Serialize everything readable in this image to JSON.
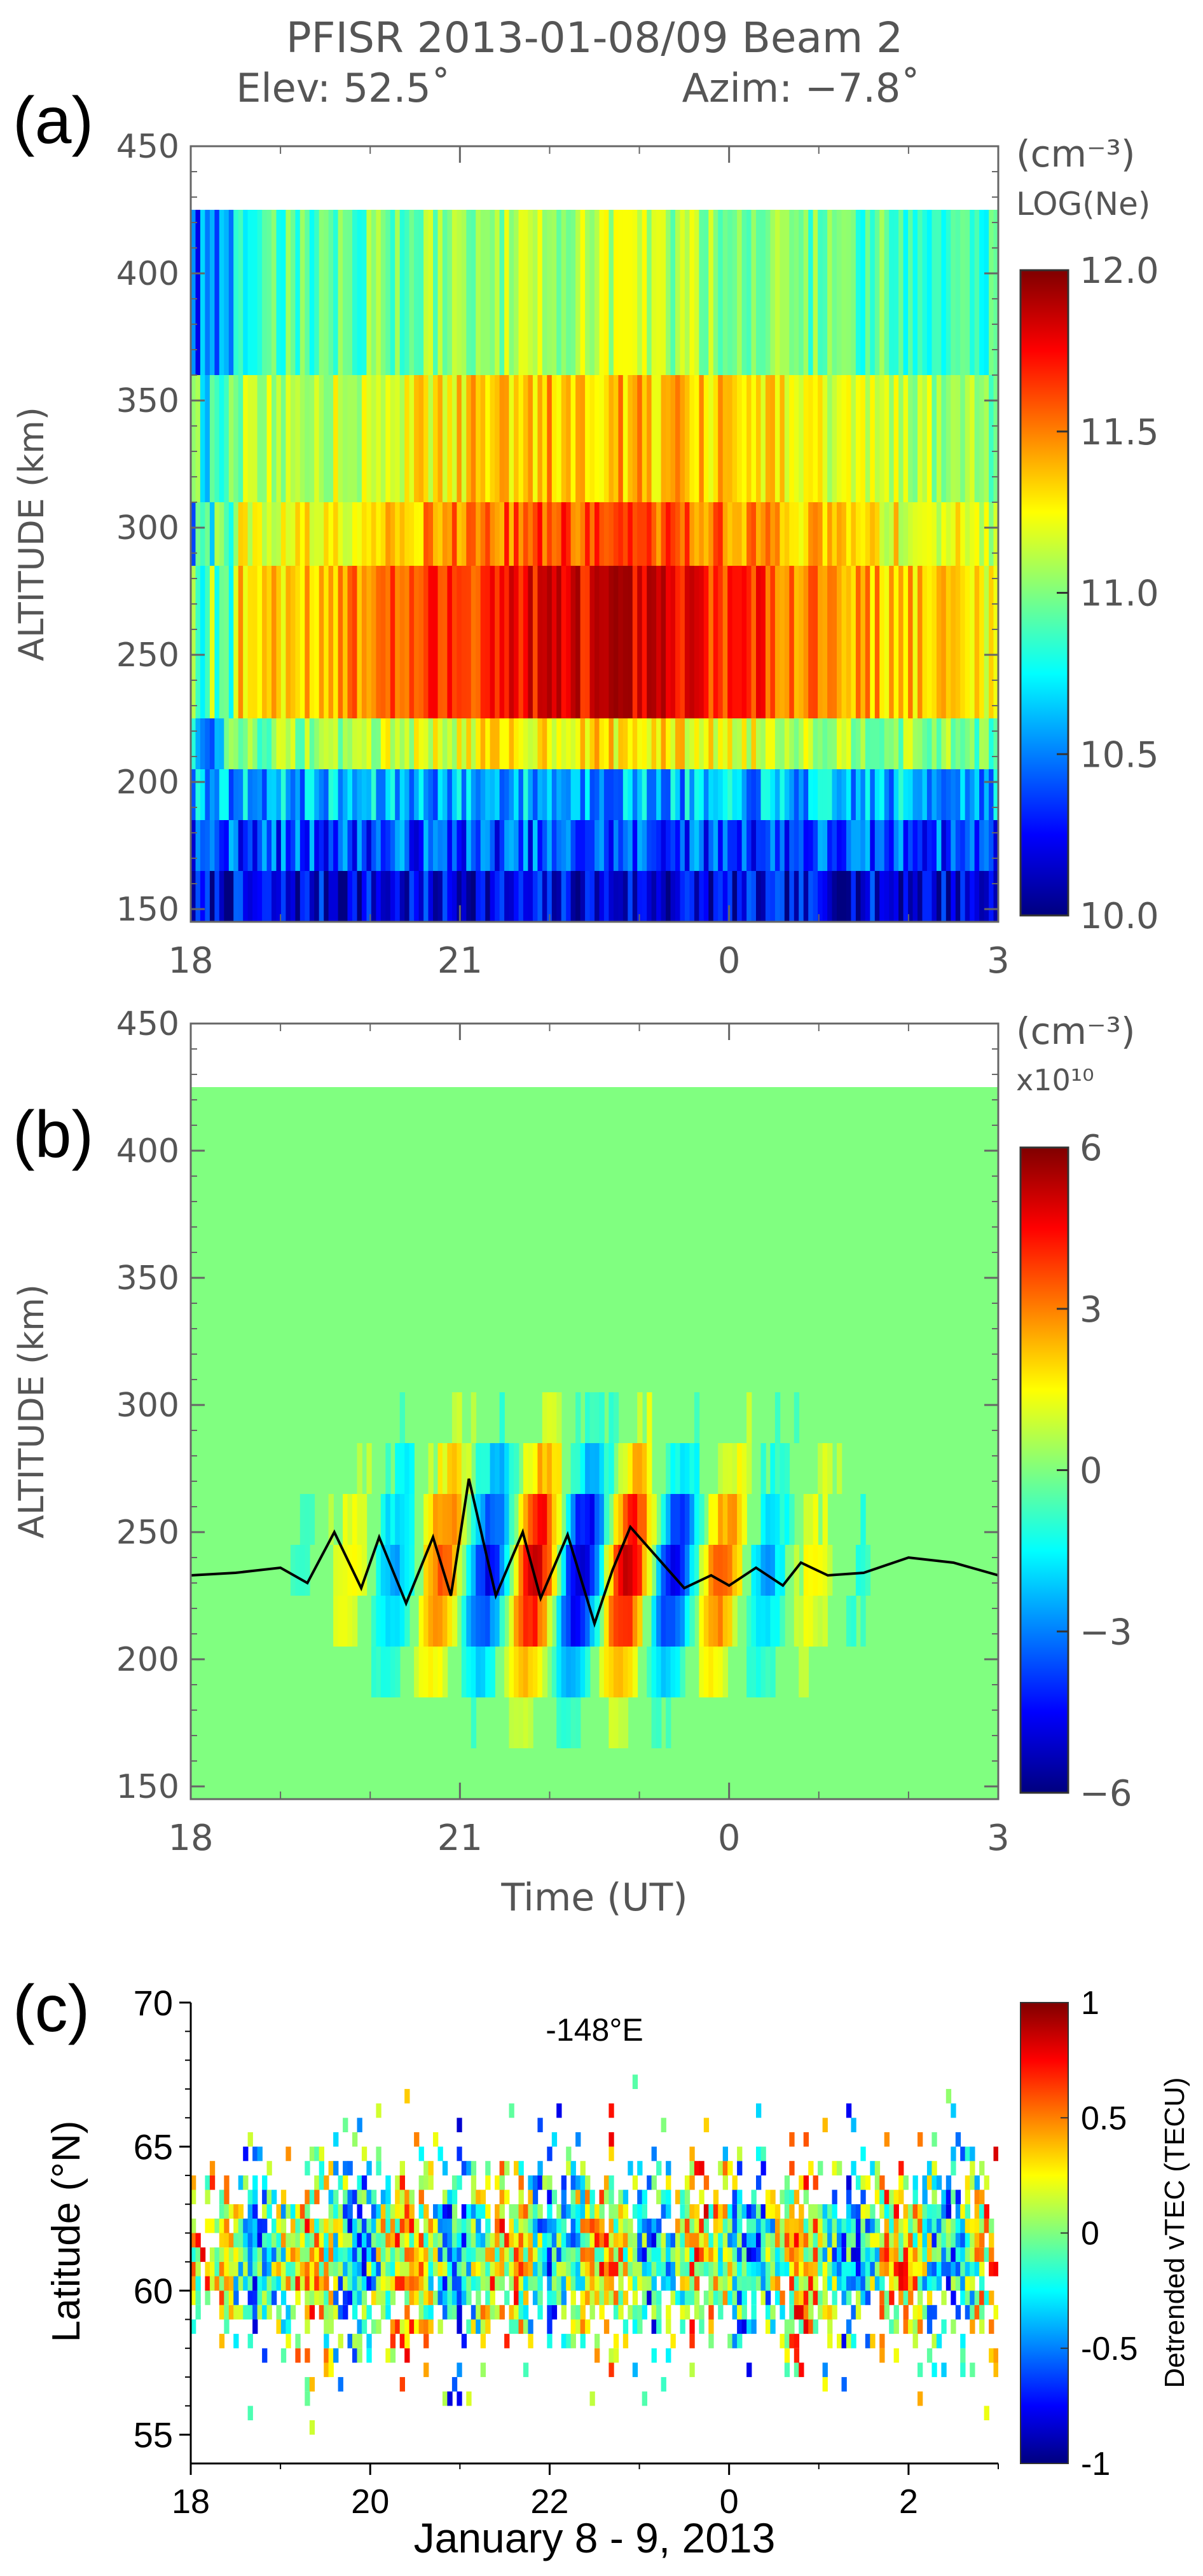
{
  "figure": {
    "title_line1": "PFISR 2013-01-08/09 Beam 2",
    "title_line2_elev": "Elev: 52.5˚",
    "title_line2_azim": "Azim:  −7.8˚"
  },
  "chart_data": [
    {
      "panel_label": "(a)",
      "type": "heatmap",
      "title": "",
      "ylabel": "ALTITUDE (km)",
      "xlabel": "",
      "x_ticks": [
        "18",
        "21",
        "0",
        "3"
      ],
      "x_range_ut": [
        18,
        27
      ],
      "y_ticks": [
        "150",
        "200",
        "250",
        "300",
        "350",
        "400",
        "450"
      ],
      "ylim": [
        145,
        450
      ],
      "data_top_km": 425,
      "colorbar": {
        "unit": "(cm⁻³)",
        "label": "LOG(Ne)",
        "ticks": [
          "10.0",
          "10.5",
          "11.0",
          "11.5",
          "12.0"
        ],
        "range": [
          10.0,
          12.0
        ],
        "colormap": "jet"
      },
      "altitude_bands_km": [
        {
          "range": [
            145,
            165
          ],
          "log_ne": 10.2
        },
        {
          "range": [
            165,
            185
          ],
          "log_ne": 10.4
        },
        {
          "range": [
            185,
            205
          ],
          "log_ne": 10.6
        },
        {
          "range": [
            205,
            225
          ],
          "log_ne": 11.3
        },
        {
          "range": [
            225,
            285
          ],
          "log_ne": 11.8
        },
        {
          "range": [
            285,
            310
          ],
          "log_ne": 11.6
        },
        {
          "range": [
            310,
            360
          ],
          "log_ne": 11.4
        },
        {
          "range": [
            360,
            425
          ],
          "log_ne": 11.1
        }
      ]
    },
    {
      "panel_label": "(b)",
      "type": "heatmap",
      "title": "",
      "ylabel": "ALTITUDE (km)",
      "xlabel": "Time (UT)",
      "x_ticks": [
        "18",
        "21",
        "0",
        "3"
      ],
      "x_range_ut": [
        18,
        27
      ],
      "y_ticks": [
        "150",
        "200",
        "250",
        "300",
        "350",
        "400",
        "450"
      ],
      "ylim": [
        145,
        450
      ],
      "data_top_km": 425,
      "colorbar": {
        "unit": "(cm⁻³)",
        "label": "x10¹⁰",
        "ticks": [
          "−6",
          "−3",
          "0",
          "3",
          "6"
        ],
        "range": [
          -6,
          6
        ],
        "colormap": "jet"
      },
      "overlay_line": {
        "type": "line",
        "x_ut": [
          18.0,
          18.5,
          19.0,
          19.3,
          19.6,
          19.9,
          20.1,
          20.4,
          20.7,
          20.9,
          21.1,
          21.4,
          21.7,
          21.9,
          22.2,
          22.5,
          22.7,
          22.9,
          23.2,
          23.5,
          23.8,
          24.0,
          24.3,
          24.6,
          24.8,
          25.1,
          25.5,
          26.0,
          26.5,
          27.0
        ],
        "altitude_km": [
          233,
          234,
          236,
          230,
          250,
          228,
          248,
          222,
          248,
          225,
          271,
          225,
          250,
          224,
          249,
          214,
          235,
          252,
          240,
          228,
          233,
          229,
          236,
          229,
          238,
          233,
          234,
          240,
          238,
          233
        ]
      }
    },
    {
      "panel_label": "(c)",
      "type": "heatmap",
      "title": "-148°E",
      "ylabel": "Latitude (°N)",
      "xlabel": "January 8 - 9, 2013",
      "x_ticks": [
        "18",
        "20",
        "22",
        "0",
        "2"
      ],
      "x_range_ut": [
        18,
        27
      ],
      "y_ticks": [
        "55",
        "60",
        "65",
        "70"
      ],
      "ylim": [
        54,
        70
      ],
      "colorbar": {
        "label": "Detrended vTEC (TECU)",
        "ticks": [
          "-1",
          "-0.5",
          "0",
          "0.5",
          "1"
        ],
        "range": [
          -1,
          1
        ],
        "colormap": "jet"
      }
    }
  ]
}
